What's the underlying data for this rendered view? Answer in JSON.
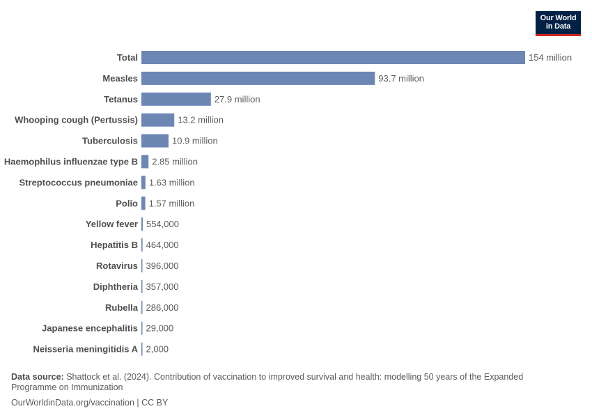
{
  "logo": {
    "line1": "Our World",
    "line2": "in Data"
  },
  "chart_data": {
    "type": "bar",
    "orientation": "horizontal",
    "title": "",
    "xlabel": "",
    "ylabel": "",
    "categories": [
      "Total",
      "Measles",
      "Tetanus",
      "Whooping cough (Pertussis)",
      "Tuberculosis",
      "Haemophilus influenzae type B",
      "Streptococcus pneumoniae",
      "Polio",
      "Yellow fever",
      "Hepatitis B",
      "Rotavirus",
      "Diphtheria",
      "Rubella",
      "Japanese encephalitis",
      "Neisseria meningitidis A"
    ],
    "values": [
      154000000,
      93700000,
      27900000,
      13200000,
      10900000,
      2850000,
      1630000,
      1570000,
      554000,
      464000,
      396000,
      357000,
      286000,
      29000,
      2000
    ],
    "value_labels": [
      "154 million",
      "93.7 million",
      "27.9 million",
      "13.2 million",
      "10.9 million",
      "2.85 million",
      "1.63 million",
      "1.57 million",
      "554,000",
      "464,000",
      "396,000",
      "357,000",
      "286,000",
      "29,000",
      "2,000"
    ],
    "xlim": [
      0,
      154000000
    ],
    "grid": false,
    "bar_color": "#6d87b5"
  },
  "footer": {
    "source_prefix": "Data source:",
    "source_text": "Shattock et al. (2024). Contribution of vaccination to improved survival and health: modelling 50 years of the Expanded Programme on Immunization",
    "license": "OurWorldinData.org/vaccination | CC BY"
  }
}
